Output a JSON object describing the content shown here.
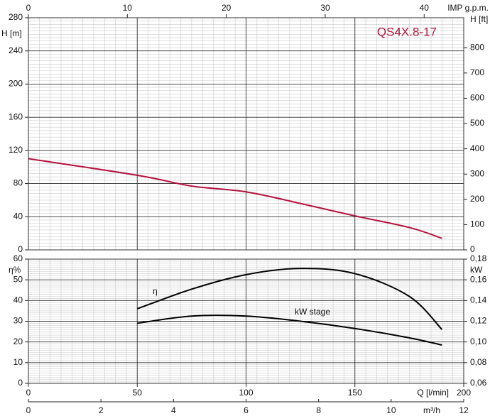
{
  "chart_data": [
    {
      "type": "line",
      "title": "QS4X.8-17",
      "ylabel": "H [m]",
      "y2label": "H [ft]",
      "x2label": "IMP g.p.m.",
      "x": [
        0,
        50,
        75,
        100,
        125,
        150,
        175,
        190
      ],
      "series": [
        {
          "color": "#b5123e",
          "values": [
            110,
            90,
            77,
            70,
            56,
            41,
            27,
            14
          ]
        }
      ],
      "xlim": [
        0,
        200
      ],
      "ylim": [
        0,
        280
      ],
      "yticks": [
        0,
        40,
        80,
        120,
        160,
        200,
        240,
        280
      ],
      "y2lim": [
        0,
        918.6
      ],
      "y2ticks": [
        0,
        100,
        200,
        300,
        400,
        500,
        600,
        700,
        800
      ],
      "x2lim": [
        0,
        44
      ],
      "x2ticks": [
        0,
        10,
        20,
        30,
        40
      ],
      "grid": true
    },
    {
      "type": "line",
      "ylabel": "η%",
      "y2label": "kW",
      "xlabel": "Q [l/min]",
      "x2label": "m³/h",
      "x": [
        50,
        75,
        100,
        125,
        150,
        175,
        190
      ],
      "series": [
        {
          "name": "η",
          "color": "#000000",
          "values": [
            36,
            45.5,
            52.5,
            55.5,
            53,
            42,
            26
          ]
        },
        {
          "name": "kW stage",
          "color": "#000000",
          "axis": "y2",
          "values": [
            0.118,
            0.125,
            0.125,
            0.12,
            0.113,
            0.104,
            0.097
          ]
        }
      ],
      "xlim": [
        0,
        200
      ],
      "xticks": [
        0,
        50,
        100,
        150,
        200
      ],
      "ylim": [
        0,
        60
      ],
      "yticks": [
        0,
        10,
        20,
        30,
        40,
        50,
        60
      ],
      "y2lim": [
        0.06,
        0.18
      ],
      "y2ticks": [
        {
          "value": 0.06,
          "label": "0,06"
        },
        {
          "value": 0.08,
          "label": "0,08"
        },
        {
          "value": 0.1,
          "label": "0,10"
        },
        {
          "value": 0.12,
          "label": "0,12"
        },
        {
          "value": 0.14,
          "label": "0,14"
        },
        {
          "value": 0.16,
          "label": "0,16"
        },
        {
          "value": 0.18,
          "label": "0,18"
        }
      ],
      "x2lim": [
        0,
        12
      ],
      "x2ticks": [
        0,
        2,
        4,
        6,
        8,
        10,
        12
      ],
      "grid": true
    }
  ]
}
